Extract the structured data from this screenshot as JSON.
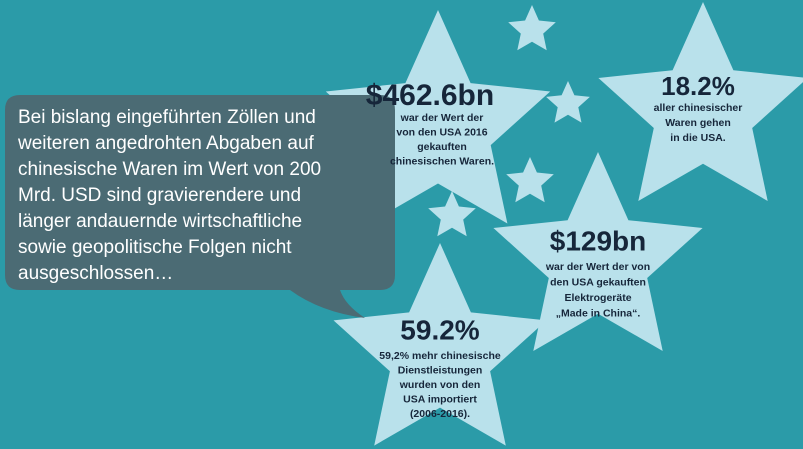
{
  "bubble": {
    "lines": [
      "Bei bislang eingeführten Zöllen und",
      "weiteren angedrohten Abgaben auf",
      "chinesische Waren im Wert von 200",
      "Mrd. USD sind gravierendere und",
      "länger andauernde wirtschaftliche",
      "sowie geopolitische Folgen nicht",
      "ausgeschlossen…"
    ]
  },
  "stars": [
    {
      "headline": "$462.6bn",
      "lines": [
        "war der Wert der",
        "von den USA 2016",
        "gekauften",
        "chinesischen Waren."
      ]
    },
    {
      "headline": "18.2%",
      "lines": [
        "aller chinesischer",
        "Waren gehen",
        "in die USA."
      ]
    },
    {
      "headline": "$129bn",
      "lines": [
        "war der Wert der von",
        "den USA gekauften",
        "Elektrogeräte",
        "„Made in China“."
      ]
    },
    {
      "headline": "59.2%",
      "lines": [
        "59,2% mehr chinesische",
        "Dienstleistungen",
        "wurden von den",
        "USA importiert",
        "(2006-2016)."
      ]
    }
  ]
}
